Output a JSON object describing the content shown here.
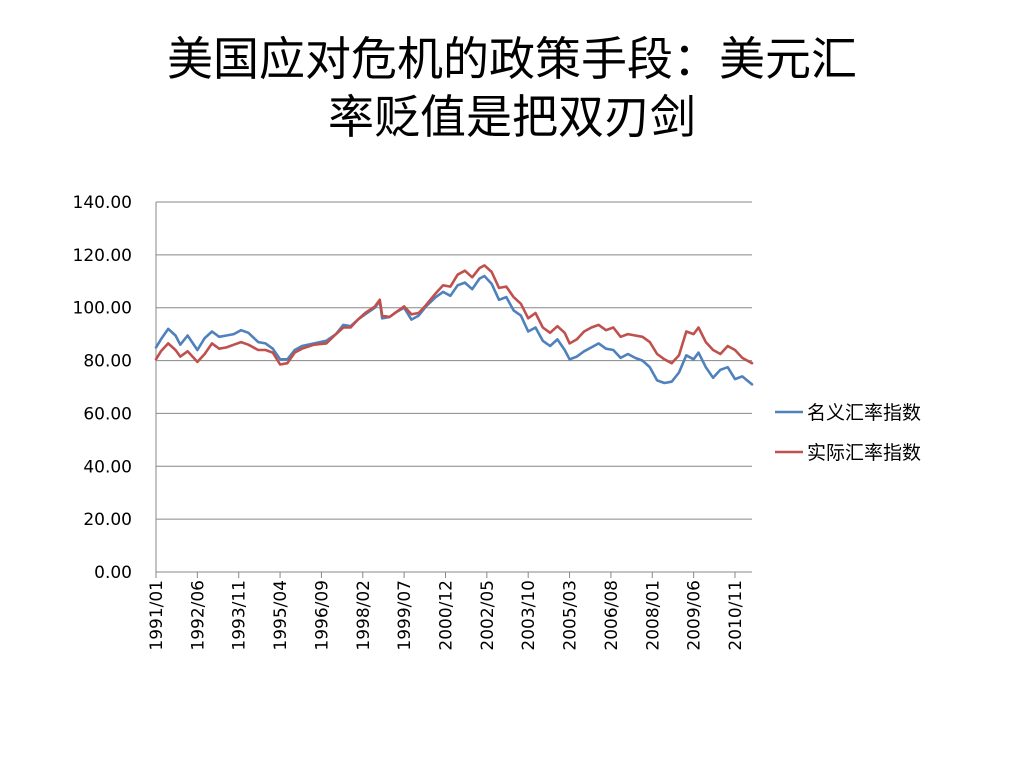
{
  "title": {
    "line1": "美国应对危机的政策手段：美元汇",
    "line2": "率贬值是把双刃剑"
  },
  "chart_data": {
    "type": "line",
    "ylim": [
      0,
      140
    ],
    "yticks": [
      "0.00",
      "20.00",
      "40.00",
      "60.00",
      "80.00",
      "100.00",
      "120.00",
      "140.00"
    ],
    "xticks": [
      "1991/01",
      "1992/06",
      "1993/11",
      "1995/04",
      "1996/09",
      "1998/02",
      "1999/07",
      "2000/12",
      "2002/05",
      "2003/10",
      "2005/03",
      "2006/08",
      "2008/01",
      "2009/06",
      "2010/11"
    ],
    "grid": true,
    "legend_position": "right",
    "x_start": "1991/01",
    "x_end": "2011/06",
    "series": [
      {
        "name": "名义汇率指数",
        "color": "#4F81BD",
        "points": [
          [
            "1991/01",
            85.0
          ],
          [
            "1991/03",
            88.0
          ],
          [
            "1991/06",
            92.0
          ],
          [
            "1991/09",
            89.5
          ],
          [
            "1991/11",
            86.0
          ],
          [
            "1992/02",
            89.5
          ],
          [
            "1992/06",
            84.0
          ],
          [
            "1992/09",
            88.5
          ],
          [
            "1992/12",
            91.0
          ],
          [
            "1993/03",
            89.0
          ],
          [
            "1993/06",
            89.5
          ],
          [
            "1993/09",
            90.0
          ],
          [
            "1993/12",
            91.5
          ],
          [
            "1994/03",
            90.5
          ],
          [
            "1994/07",
            87.0
          ],
          [
            "1994/10",
            86.5
          ],
          [
            "1995/01",
            84.5
          ],
          [
            "1995/04",
            80.5
          ],
          [
            "1995/07",
            80.5
          ],
          [
            "1995/10",
            84.0
          ],
          [
            "1996/01",
            85.5
          ],
          [
            "1996/06",
            86.5
          ],
          [
            "1996/11",
            87.5
          ],
          [
            "1997/03",
            90.0
          ],
          [
            "1997/06",
            93.5
          ],
          [
            "1997/09",
            93.0
          ],
          [
            "1997/12",
            95.5
          ],
          [
            "1998/03",
            97.5
          ],
          [
            "1998/07",
            100.0
          ],
          [
            "1998/09",
            102.5
          ],
          [
            "1998/10",
            96.0
          ],
          [
            "1999/01",
            96.5
          ],
          [
            "1999/04",
            98.5
          ],
          [
            "1999/07",
            100.0
          ],
          [
            "1999/10",
            95.5
          ],
          [
            "2000/01",
            97.0
          ],
          [
            "2000/04",
            100.5
          ],
          [
            "2000/08",
            104.0
          ],
          [
            "2000/11",
            106.0
          ],
          [
            "2001/02",
            104.5
          ],
          [
            "2001/05",
            108.5
          ],
          [
            "2001/08",
            109.5
          ],
          [
            "2001/11",
            107.0
          ],
          [
            "2002/02",
            111.0
          ],
          [
            "2002/04",
            112.0
          ],
          [
            "2002/07",
            109.0
          ],
          [
            "2002/10",
            103.0
          ],
          [
            "2003/01",
            104.0
          ],
          [
            "2003/04",
            99.0
          ],
          [
            "2003/07",
            97.0
          ],
          [
            "2003/10",
            91.0
          ],
          [
            "2004/01",
            92.5
          ],
          [
            "2004/04",
            87.5
          ],
          [
            "2004/07",
            85.5
          ],
          [
            "2004/10",
            88.0
          ],
          [
            "2005/01",
            84.0
          ],
          [
            "2005/03",
            80.5
          ],
          [
            "2005/06",
            81.5
          ],
          [
            "2005/09",
            83.5
          ],
          [
            "2005/12",
            85.0
          ],
          [
            "2006/03",
            86.5
          ],
          [
            "2006/06",
            84.5
          ],
          [
            "2006/09",
            84.0
          ],
          [
            "2006/12",
            81.0
          ],
          [
            "2007/03",
            82.5
          ],
          [
            "2007/06",
            81.0
          ],
          [
            "2007/09",
            80.0
          ],
          [
            "2007/12",
            77.5
          ],
          [
            "2008/03",
            72.5
          ],
          [
            "2008/06",
            71.5
          ],
          [
            "2008/09",
            72.0
          ],
          [
            "2008/12",
            75.5
          ],
          [
            "2009/03",
            82.0
          ],
          [
            "2009/06",
            80.5
          ],
          [
            "2009/08",
            83.0
          ],
          [
            "2009/11",
            77.5
          ],
          [
            "2010/02",
            73.5
          ],
          [
            "2010/05",
            76.5
          ],
          [
            "2010/08",
            77.5
          ],
          [
            "2010/11",
            73.0
          ],
          [
            "2011/02",
            74.0
          ],
          [
            "2011/06",
            71.0
          ]
        ]
      },
      {
        "name": "实际汇率指数",
        "color": "#C0504D",
        "points": [
          [
            "1991/01",
            80.5
          ],
          [
            "1991/03",
            83.5
          ],
          [
            "1991/06",
            86.5
          ],
          [
            "1991/09",
            84.0
          ],
          [
            "1991/11",
            81.5
          ],
          [
            "1992/02",
            83.5
          ],
          [
            "1992/06",
            79.5
          ],
          [
            "1992/09",
            82.5
          ],
          [
            "1992/12",
            86.5
          ],
          [
            "1993/03",
            84.5
          ],
          [
            "1993/06",
            85.0
          ],
          [
            "1993/09",
            86.0
          ],
          [
            "1993/12",
            87.0
          ],
          [
            "1994/03",
            86.0
          ],
          [
            "1994/07",
            84.0
          ],
          [
            "1994/10",
            84.0
          ],
          [
            "1995/01",
            83.0
          ],
          [
            "1995/04",
            78.5
          ],
          [
            "1995/07",
            79.0
          ],
          [
            "1995/10",
            83.0
          ],
          [
            "1996/01",
            84.5
          ],
          [
            "1996/06",
            86.0
          ],
          [
            "1996/11",
            86.5
          ],
          [
            "1997/03",
            90.0
          ],
          [
            "1997/06",
            92.5
          ],
          [
            "1997/09",
            92.5
          ],
          [
            "1997/12",
            95.5
          ],
          [
            "1998/03",
            98.0
          ],
          [
            "1998/07",
            100.5
          ],
          [
            "1998/09",
            103.0
          ],
          [
            "1998/10",
            97.0
          ],
          [
            "1999/01",
            96.5
          ],
          [
            "1999/04",
            98.5
          ],
          [
            "1999/07",
            100.5
          ],
          [
            "1999/10",
            97.5
          ],
          [
            "2000/01",
            98.0
          ],
          [
            "2000/04",
            101.0
          ],
          [
            "2000/08",
            105.5
          ],
          [
            "2000/11",
            108.5
          ],
          [
            "2001/02",
            108.0
          ],
          [
            "2001/05",
            112.5
          ],
          [
            "2001/08",
            114.0
          ],
          [
            "2001/11",
            111.5
          ],
          [
            "2002/02",
            115.0
          ],
          [
            "2002/04",
            116.0
          ],
          [
            "2002/07",
            113.5
          ],
          [
            "2002/10",
            107.5
          ],
          [
            "2003/01",
            108.0
          ],
          [
            "2003/04",
            104.0
          ],
          [
            "2003/07",
            101.5
          ],
          [
            "2003/10",
            96.0
          ],
          [
            "2004/01",
            98.0
          ],
          [
            "2004/04",
            92.5
          ],
          [
            "2004/07",
            90.5
          ],
          [
            "2004/10",
            93.0
          ],
          [
            "2005/01",
            90.5
          ],
          [
            "2005/03",
            86.5
          ],
          [
            "2005/06",
            88.0
          ],
          [
            "2005/09",
            91.0
          ],
          [
            "2005/12",
            92.5
          ],
          [
            "2006/03",
            93.5
          ],
          [
            "2006/06",
            91.5
          ],
          [
            "2006/09",
            92.5
          ],
          [
            "2006/12",
            89.0
          ],
          [
            "2007/03",
            90.0
          ],
          [
            "2007/06",
            89.5
          ],
          [
            "2007/09",
            89.0
          ],
          [
            "2007/12",
            87.0
          ],
          [
            "2008/03",
            82.5
          ],
          [
            "2008/06",
            80.5
          ],
          [
            "2008/09",
            79.0
          ],
          [
            "2008/12",
            82.0
          ],
          [
            "2009/03",
            91.0
          ],
          [
            "2009/06",
            90.0
          ],
          [
            "2009/08",
            92.5
          ],
          [
            "2009/11",
            87.0
          ],
          [
            "2010/02",
            84.0
          ],
          [
            "2010/05",
            82.5
          ],
          [
            "2010/08",
            85.5
          ],
          [
            "2010/11",
            84.0
          ],
          [
            "2011/02",
            81.0
          ],
          [
            "2011/06",
            79.0
          ]
        ]
      }
    ]
  }
}
